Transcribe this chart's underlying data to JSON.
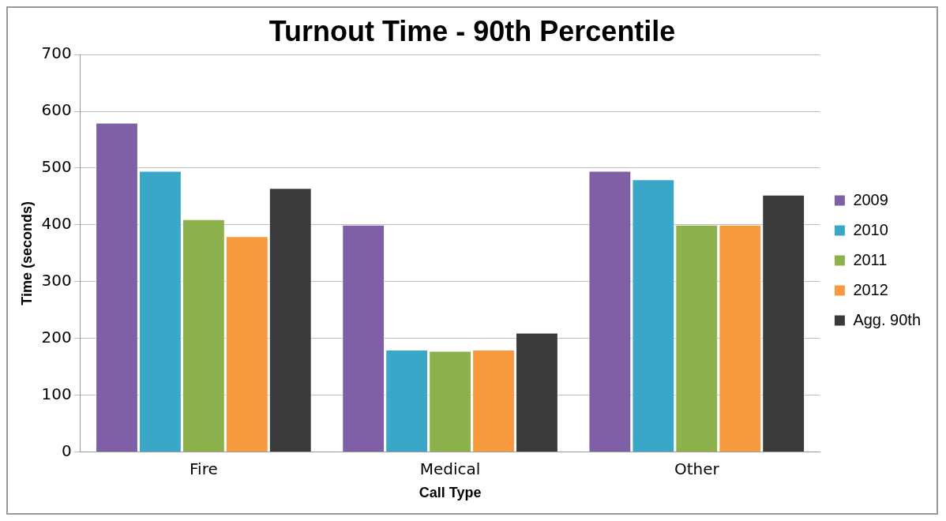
{
  "chart_data": {
    "type": "bar",
    "title": "Turnout Time - 90th Percentile",
    "xlabel": "Call Type",
    "ylabel": "Time (seconds)",
    "categories": [
      "Fire",
      "Medical",
      "Other"
    ],
    "series": [
      {
        "name": "2009",
        "color": "#7f5fa5",
        "values": [
          580,
          400,
          495
        ]
      },
      {
        "name": "2010",
        "color": "#3aa6c8",
        "values": [
          495,
          180,
          480
        ]
      },
      {
        "name": "2011",
        "color": "#8db14c",
        "values": [
          410,
          178,
          400
        ]
      },
      {
        "name": "2012",
        "color": "#f79a3e",
        "values": [
          380,
          180,
          400
        ]
      },
      {
        "name": "Agg. 90th",
        "color": "#3a3a3a",
        "values": [
          465,
          210,
          453
        ]
      }
    ],
    "ylim": [
      0,
      700
    ],
    "yticks": [
      0,
      100,
      200,
      300,
      400,
      500,
      600,
      700
    ],
    "grid": "y",
    "legend": "right"
  }
}
